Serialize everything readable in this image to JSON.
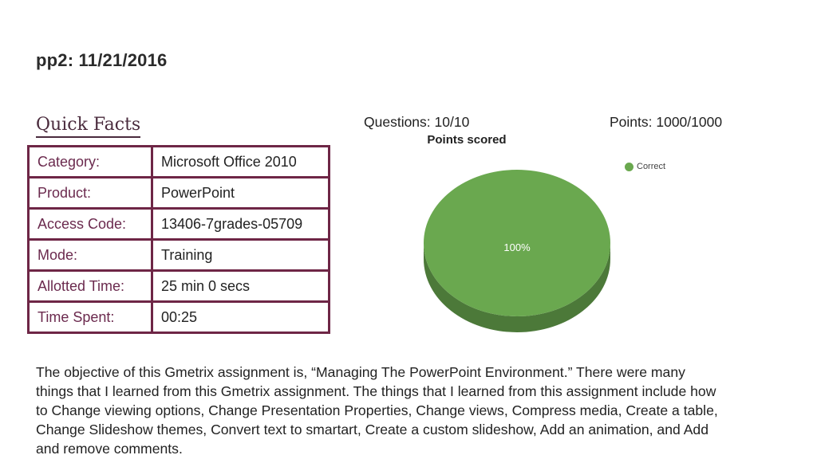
{
  "page": {
    "title": "pp2: 11/21/2016"
  },
  "quick_facts": {
    "heading": "Quick Facts",
    "rows": [
      {
        "label": "Category:",
        "value": "Microsoft Office 2010"
      },
      {
        "label": "Product:",
        "value": "PowerPoint"
      },
      {
        "label": "Access Code:",
        "value": "13406-7grades-05709"
      },
      {
        "label": "Mode:",
        "value": "Training"
      },
      {
        "label": "Allotted Time:",
        "value": "25 min 0 secs"
      },
      {
        "label": "Time Spent:",
        "value": "00:25"
      }
    ]
  },
  "summary": {
    "questions": "Questions: 10/10",
    "points": "Points: 1000/1000"
  },
  "chart_data": {
    "type": "pie",
    "title": "Points scored",
    "categories": [
      "Correct"
    ],
    "values": [
      100
    ],
    "slice_labels": [
      "100%"
    ],
    "colors": [
      "#6aa84f"
    ],
    "legend": "top-right"
  },
  "reflection": {
    "lines": [
      "The objective of this Gmetrix assignment is, “Managing The PowerPoint Environment.” There were many",
      "things that I learned from this Gmetrix assignment. The things that I learned from this assignment include how",
      "to Change viewing options, Change Presentation Properties, Change views, Compress media, Create a table,",
      "Change Slideshow themes, Convert text to smartart, Create a custom slideshow, Add an animation, and Add",
      "and remove comments."
    ]
  }
}
